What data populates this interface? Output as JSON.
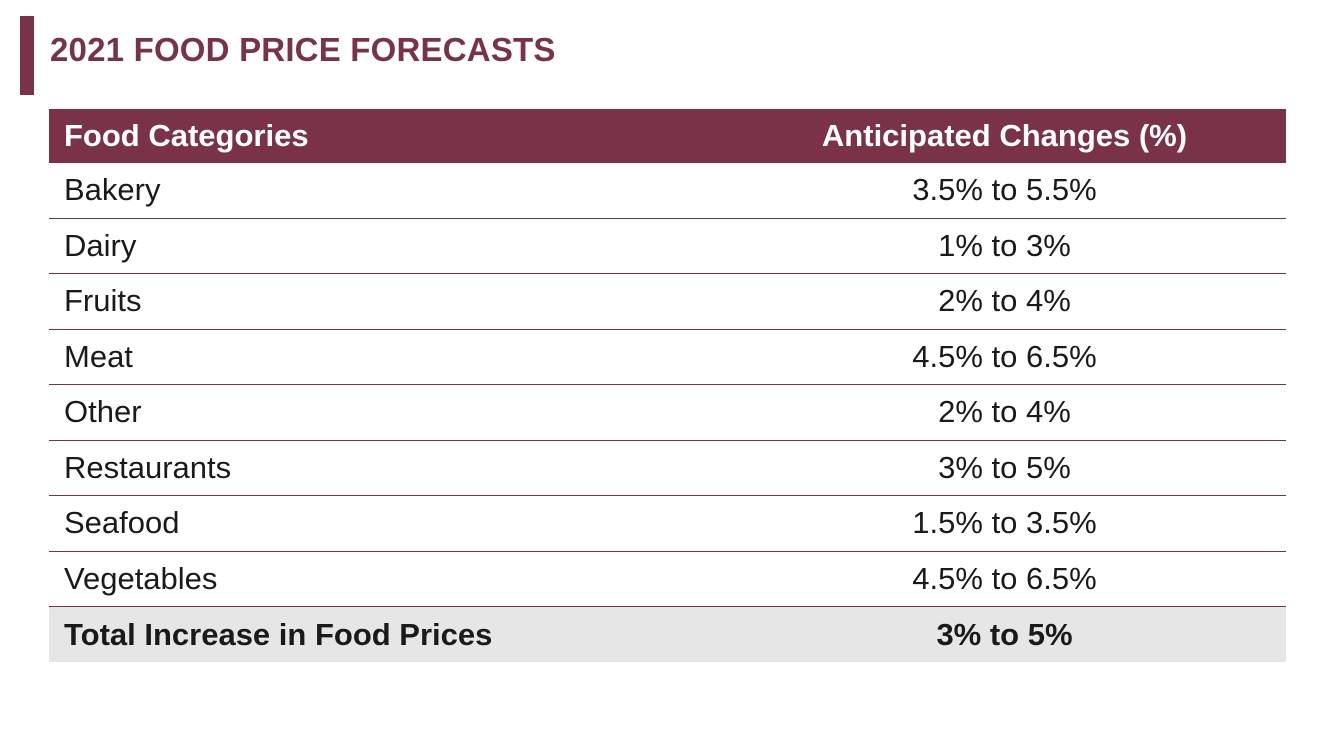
{
  "title": "2021 FOOD PRICE FORECASTS",
  "colors": {
    "accent": "#7a3249",
    "total_row_bg": "#e6e6e6"
  },
  "table": {
    "headers": [
      "Food Categories",
      "Anticipated Changes (%)"
    ],
    "rows": [
      {
        "category": "Bakery",
        "change": "3.5% to 5.5%"
      },
      {
        "category": "Dairy",
        "change": "1% to 3%"
      },
      {
        "category": "Fruits",
        "change": "2% to 4%"
      },
      {
        "category": "Meat",
        "change": "4.5% to 6.5%"
      },
      {
        "category": "Other",
        "change": "2% to 4%"
      },
      {
        "category": "Restaurants",
        "change": "3% to 5%"
      },
      {
        "category": "Seafood",
        "change": "1.5% to 3.5%"
      },
      {
        "category": "Vegetables",
        "change": "4.5% to 6.5%"
      }
    ],
    "total": {
      "category": "Total Increase in Food Prices",
      "change": "3% to 5%"
    }
  }
}
